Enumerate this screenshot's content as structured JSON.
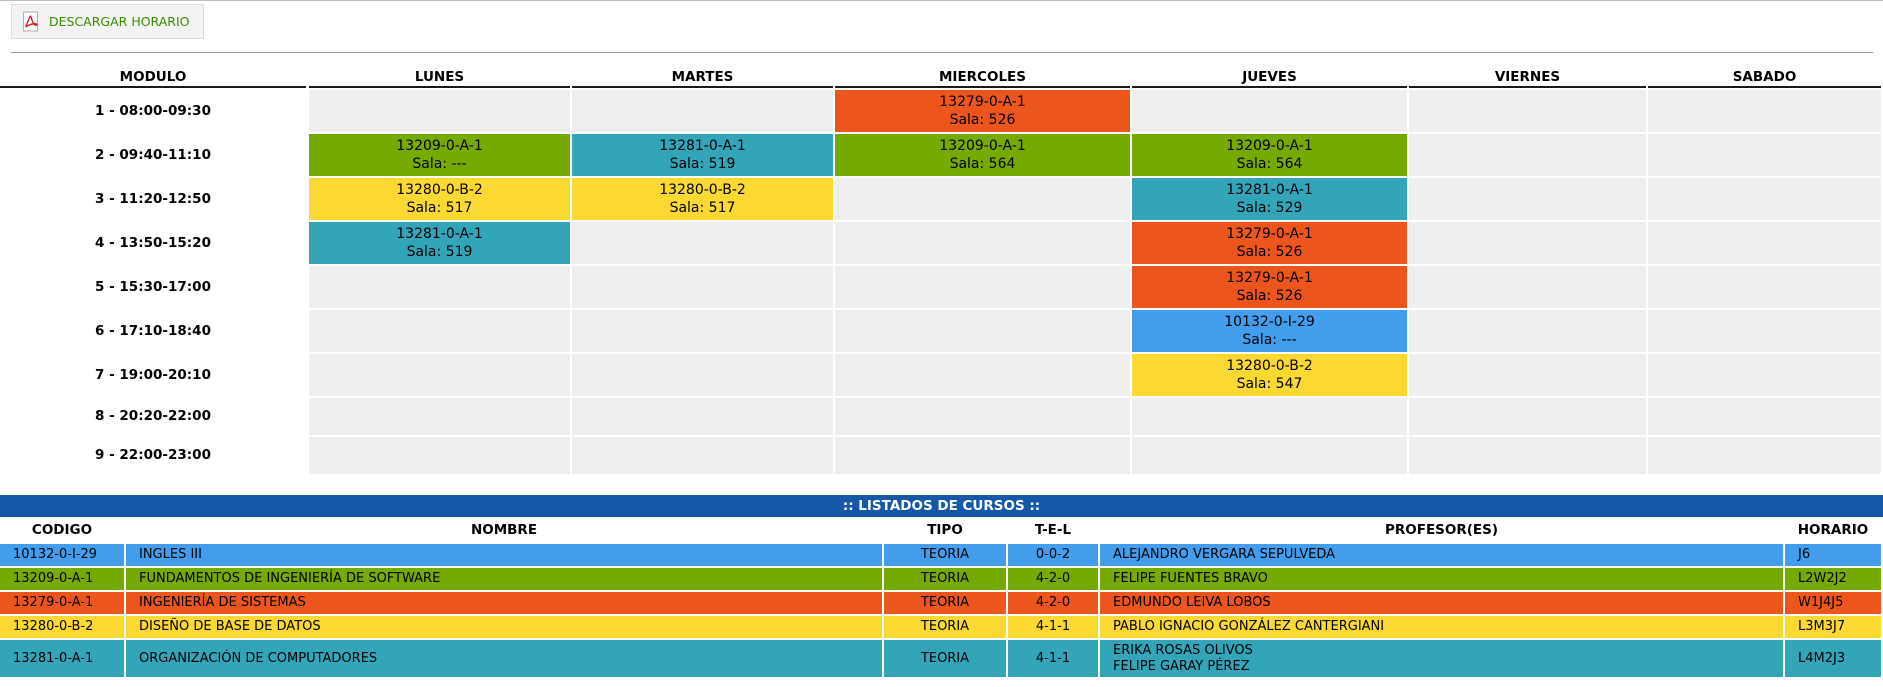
{
  "toolbar": {
    "download_label": "DESCARGAR HORARIO"
  },
  "colors": {
    "blue": "#429ded",
    "green": "#75aa00",
    "orange": "#ec561c",
    "yellow": "#fcd932",
    "teal": "#33a5b8",
    "header_blue": "#1557a8",
    "empty": "#eeeeee"
  },
  "schedule": {
    "headers": [
      "MODULO",
      "LUNES",
      "MARTES",
      "MIERCOLES",
      "JUEVES",
      "VIERNES",
      "SABADO"
    ],
    "modules": [
      "1 - 08:00-09:30",
      "2 - 09:40-11:10",
      "3 - 11:20-12:50",
      "4 - 13:50-15:20",
      "5 - 15:30-17:00",
      "6 - 17:10-18:40",
      "7 - 19:00-20:10",
      "8 - 20:20-22:00",
      "9 - 22:00-23:00"
    ],
    "slots": [
      [
        null,
        null,
        {
          "code": "13279-0-A-1",
          "room": "Sala: 526",
          "color": "orange"
        },
        null,
        null,
        null
      ],
      [
        {
          "code": "13209-0-A-1",
          "room": "Sala: ---",
          "color": "green"
        },
        {
          "code": "13281-0-A-1",
          "room": "Sala: 519",
          "color": "teal"
        },
        {
          "code": "13209-0-A-1",
          "room": "Sala: 564",
          "color": "green"
        },
        {
          "code": "13209-0-A-1",
          "room": "Sala: 564",
          "color": "green"
        },
        null,
        null
      ],
      [
        {
          "code": "13280-0-B-2",
          "room": "Sala: 517",
          "color": "yellow"
        },
        {
          "code": "13280-0-B-2",
          "room": "Sala: 517",
          "color": "yellow"
        },
        null,
        {
          "code": "13281-0-A-1",
          "room": "Sala: 529",
          "color": "teal"
        },
        null,
        null
      ],
      [
        {
          "code": "13281-0-A-1",
          "room": "Sala: 519",
          "color": "teal"
        },
        null,
        null,
        {
          "code": "13279-0-A-1",
          "room": "Sala: 526",
          "color": "orange"
        },
        null,
        null
      ],
      [
        null,
        null,
        null,
        {
          "code": "13279-0-A-1",
          "room": "Sala: 526",
          "color": "orange"
        },
        null,
        null
      ],
      [
        null,
        null,
        null,
        {
          "code": "10132-0-I-29",
          "room": "Sala: ---",
          "color": "blue"
        },
        null,
        null
      ],
      [
        null,
        null,
        null,
        {
          "code": "13280-0-B-2",
          "room": "Sala: 547",
          "color": "yellow"
        },
        null,
        null
      ],
      [
        null,
        null,
        null,
        null,
        null,
        null
      ],
      [
        null,
        null,
        null,
        null,
        null,
        null
      ]
    ]
  },
  "courses": {
    "title": ":: LISTADOS DE CURSOS ::",
    "headers": [
      "CODIGO",
      "NOMBRE",
      "TIPO",
      "T-E-L",
      "PROFESOR(ES)",
      "HORARIO"
    ],
    "rows": [
      {
        "code": "10132-0-I-29",
        "name": "INGLES III",
        "type": "TEORIA",
        "tel": "0-0-2",
        "profs": [
          "ALEJANDRO VERGARA SEPULVEDA"
        ],
        "horario": "J6",
        "color": "blue"
      },
      {
        "code": "13209-0-A-1",
        "name": "FUNDAMENTOS DE INGENIERÍA DE SOFTWARE",
        "type": "TEORIA",
        "tel": "4-2-0",
        "profs": [
          "FELIPE FUENTES BRAVO"
        ],
        "horario": "L2W2J2",
        "color": "green"
      },
      {
        "code": "13279-0-A-1",
        "name": "INGENIERÍA DE SISTEMAS",
        "type": "TEORIA",
        "tel": "4-2-0",
        "profs": [
          "EDMUNDO LEIVA LOBOS"
        ],
        "horario": "W1J4J5",
        "color": "orange"
      },
      {
        "code": "13280-0-B-2",
        "name": "DISEÑO DE BASE DE DATOS",
        "type": "TEORIA",
        "tel": "4-1-1",
        "profs": [
          "PABLO IGNACIO GONZÁLEZ CANTERGIANI"
        ],
        "horario": "L3M3J7",
        "color": "yellow"
      },
      {
        "code": "13281-0-A-1",
        "name": "ORGANIZACIÓN DE COMPUTADORES",
        "type": "TEORIA",
        "tel": "4-1-1",
        "profs": [
          "ERIKA ROSAS OLIVOS",
          "FELIPE GARAY PÉREZ"
        ],
        "horario": "L4M2J3",
        "color": "teal"
      }
    ]
  }
}
